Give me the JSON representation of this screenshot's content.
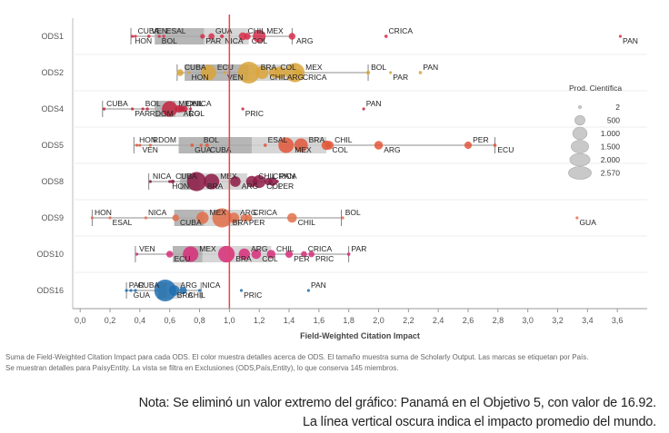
{
  "chart_data": {
    "type": "scatter",
    "subtype": "box-and-whisker with bubble marks",
    "xlabel": "Field-Weighted Citation Impact",
    "ylabel": "",
    "xlim": [
      -0.05,
      3.8
    ],
    "x_ticks": [
      "0,0",
      "0,2",
      "0,4",
      "0,6",
      "0,8",
      "1,0",
      "1,2",
      "1,4",
      "1,6",
      "1,8",
      "2,0",
      "2,2",
      "2,4",
      "2,6",
      "2,8",
      "3,0",
      "3,2",
      "3,4",
      "3,6"
    ],
    "x_tick_values": [
      0,
      0.2,
      0.4,
      0.6,
      0.8,
      1.0,
      1.2,
      1.4,
      1.6,
      1.8,
      2.0,
      2.2,
      2.4,
      2.6,
      2.8,
      3.0,
      3.2,
      3.4,
      3.6
    ],
    "reference_line": {
      "x": 1.0,
      "color": "#e8464a"
    },
    "categories": [
      "ODS1",
      "ODS2",
      "ODS4",
      "ODS5",
      "ODS8",
      "ODS9",
      "ODS10",
      "ODS16"
    ],
    "series": [
      {
        "name": "ODS1",
        "color": "#d62f4b",
        "box": [
          0.5,
          0.83,
          1.13
        ],
        "whiskers": [
          0.34,
          1.42
        ],
        "points": [
          {
            "label": "CUBA",
            "x": 0.37,
            "size": 50
          },
          {
            "label": "HON",
            "x": 0.35,
            "size": 40
          },
          {
            "label": "VEN",
            "x": 0.46,
            "size": 60
          },
          {
            "label": "BOL",
            "x": 0.53,
            "size": 40
          },
          {
            "label": "ESAL",
            "x": 0.56,
            "size": 50
          },
          {
            "label": "PAR",
            "x": 0.82,
            "size": 120
          },
          {
            "label": "GUA",
            "x": 0.88,
            "size": 200
          },
          {
            "label": "NICA",
            "x": 0.95,
            "size": 80
          },
          {
            "label": "CHIL",
            "x": 1.09,
            "size": 350
          },
          {
            "label": "COL",
            "x": 1.12,
            "size": 250
          },
          {
            "label": "MEX",
            "x": 1.2,
            "size": 900
          },
          {
            "label": "ARG",
            "x": 1.42,
            "size": 250
          },
          {
            "label": "CRICA",
            "x": 2.05,
            "size": 60
          },
          {
            "label": "PAN",
            "x": 3.62,
            "size": 30
          }
        ]
      },
      {
        "name": "ODS2",
        "color": "#d9a53a",
        "box": [
          0.7,
          1.13,
          1.45
        ],
        "whiskers": [
          0.65,
          1.93
        ],
        "points": [
          {
            "label": "CUBA",
            "x": 0.67,
            "size": 250
          },
          {
            "label": "HON",
            "x": 0.73,
            "size": 40
          },
          {
            "label": "ECU",
            "x": 0.86,
            "size": 1300
          },
          {
            "label": "VEN",
            "x": 0.97,
            "size": 40
          },
          {
            "label": "BRA",
            "x": 1.13,
            "size": 2570
          },
          {
            "label": "CHIL",
            "x": 1.22,
            "size": 900
          },
          {
            "label": "COL",
            "x": 1.3,
            "size": 600
          },
          {
            "label": "ARG",
            "x": 1.34,
            "size": 800
          },
          {
            "label": "MEX",
            "x": 1.44,
            "size": 2000
          },
          {
            "label": "CRICA",
            "x": 1.46,
            "size": 300
          },
          {
            "label": "BOL",
            "x": 1.93,
            "size": 80
          },
          {
            "label": "PAR",
            "x": 2.08,
            "size": 40
          },
          {
            "label": "PAN",
            "x": 2.28,
            "size": 60
          }
        ]
      },
      {
        "name": "ODS4",
        "color": "#c2253e",
        "box": [
          0.5,
          0.64,
          0.73
        ],
        "whiskers": [
          0.15,
          0.74
        ],
        "points": [
          {
            "label": "CUBA",
            "x": 0.16,
            "size": 50
          },
          {
            "label": "PAR",
            "x": 0.35,
            "size": 30
          },
          {
            "label": "BOL",
            "x": 0.42,
            "size": 40
          },
          {
            "label": "RDOM",
            "x": 0.45,
            "size": 50
          },
          {
            "label": "MEX",
            "x": 0.6,
            "size": 1300
          },
          {
            "label": "ARG",
            "x": 0.66,
            "size": 300
          },
          {
            "label": "CHIL",
            "x": 0.68,
            "size": 250
          },
          {
            "label": "COL",
            "x": 0.7,
            "size": 200
          },
          {
            "label": "NICA",
            "x": 0.74,
            "size": 40
          },
          {
            "label": "PRIC",
            "x": 1.09,
            "size": 30
          },
          {
            "label": "PAN",
            "x": 1.9,
            "size": 30
          }
        ]
      },
      {
        "name": "ODS5",
        "color": "#e2573a",
        "box": [
          0.66,
          1.15,
          1.65
        ],
        "whiskers": [
          0.36,
          2.78
        ],
        "points": [
          {
            "label": "HON",
            "x": 0.38,
            "size": 30
          },
          {
            "label": "VEN",
            "x": 0.4,
            "size": 40
          },
          {
            "label": "RDOM",
            "x": 0.47,
            "size": 40
          },
          {
            "label": "GUA",
            "x": 0.75,
            "size": 60
          },
          {
            "label": "BOL",
            "x": 0.81,
            "size": 50
          },
          {
            "label": "CUBA",
            "x": 0.85,
            "size": 80
          },
          {
            "label": "ESAL",
            "x": 1.24,
            "size": 60
          },
          {
            "label": "MEX",
            "x": 1.38,
            "size": 1300
          },
          {
            "label": "BRA",
            "x": 1.48,
            "size": 1000
          },
          {
            "label": "COL",
            "x": 1.65,
            "size": 500
          },
          {
            "label": "CHIL",
            "x": 1.67,
            "size": 400
          },
          {
            "label": "ARG",
            "x": 2.0,
            "size": 400
          },
          {
            "label": "PER",
            "x": 2.6,
            "size": 300
          },
          {
            "label": "ECU",
            "x": 2.78,
            "size": 60
          }
        ]
      },
      {
        "name": "ODS8",
        "color": "#8c1a44",
        "box": [
          0.67,
          0.8,
          1.12
        ],
        "whiskers": [
          0.46,
          1.29
        ],
        "points": [
          {
            "label": "NICA",
            "x": 0.47,
            "size": 40
          },
          {
            "label": "HON",
            "x": 0.6,
            "size": 40
          },
          {
            "label": "CUBA",
            "x": 0.62,
            "size": 80
          },
          {
            "label": "BRA",
            "x": 0.78,
            "size": 2000
          },
          {
            "label": "MEX",
            "x": 0.88,
            "size": 1300
          },
          {
            "label": "ARG",
            "x": 1.04,
            "size": 600
          },
          {
            "label": "CHIL",
            "x": 1.15,
            "size": 700
          },
          {
            "label": "COL",
            "x": 1.2,
            "size": 900
          },
          {
            "label": "CRICA",
            "x": 1.26,
            "size": 300
          },
          {
            "label": "PER",
            "x": 1.29,
            "size": 400
          },
          {
            "label": "PAN",
            "x": 1.32,
            "size": 60
          }
        ]
      },
      {
        "name": "ODS9",
        "color": "#e2704a",
        "box": [
          0.63,
          0.83,
          1.08
        ],
        "whiskers": [
          0.08,
          1.75
        ],
        "points": [
          {
            "label": "HON",
            "x": 0.08,
            "size": 30
          },
          {
            "label": "ESAL",
            "x": 0.2,
            "size": 30
          },
          {
            "label": "NICA",
            "x": 0.44,
            "size": 40
          },
          {
            "label": "CUBA",
            "x": 0.64,
            "size": 250
          },
          {
            "label": "MEX",
            "x": 0.82,
            "size": 800
          },
          {
            "label": "BRA",
            "x": 0.95,
            "size": 2000
          },
          {
            "label": "ARG",
            "x": 1.03,
            "size": 600
          },
          {
            "label": "PER",
            "x": 1.1,
            "size": 300
          },
          {
            "label": "CRICA",
            "x": 1.13,
            "size": 250
          },
          {
            "label": "CHIL",
            "x": 1.42,
            "size": 500
          },
          {
            "label": "BOL",
            "x": 1.76,
            "size": 40
          },
          {
            "label": "GUA",
            "x": 3.33,
            "size": 30
          }
        ]
      },
      {
        "name": "ODS10",
        "color": "#d72e7a",
        "box": [
          0.62,
          0.82,
          1.28
        ],
        "whiskers": [
          0.37,
          1.8
        ],
        "points": [
          {
            "label": "VEN",
            "x": 0.38,
            "size": 40
          },
          {
            "label": "ECU",
            "x": 0.6,
            "size": 250
          },
          {
            "label": "MEX",
            "x": 0.74,
            "size": 1300
          },
          {
            "label": "BRA",
            "x": 0.98,
            "size": 1500
          },
          {
            "label": "ARG",
            "x": 1.1,
            "size": 700
          },
          {
            "label": "COL",
            "x": 1.18,
            "size": 500
          },
          {
            "label": "CHIL",
            "x": 1.28,
            "size": 400
          },
          {
            "label": "PER",
            "x": 1.4,
            "size": 300
          },
          {
            "label": "CRICA",
            "x": 1.5,
            "size": 200
          },
          {
            "label": "PRIC",
            "x": 1.55,
            "size": 200
          },
          {
            "label": "PAR",
            "x": 1.8,
            "size": 60
          }
        ]
      },
      {
        "name": "ODS16",
        "color": "#1f6fb0",
        "box": [
          0.52,
          0.58,
          0.68
        ],
        "whiskers": [
          0.31,
          0.81
        ],
        "points": [
          {
            "label": "PAR",
            "x": 0.31,
            "size": 40
          },
          {
            "label": "GUA",
            "x": 0.34,
            "size": 40
          },
          {
            "label": "CUBA",
            "x": 0.37,
            "size": 50
          },
          {
            "label": "BRA",
            "x": 0.57,
            "size": 2570
          },
          {
            "label": "ARG",
            "x": 0.63,
            "size": 600
          },
          {
            "label": "CHIL",
            "x": 0.69,
            "size": 300
          },
          {
            "label": "NICA",
            "x": 0.8,
            "size": 40
          },
          {
            "label": "PRIC",
            "x": 1.08,
            "size": 40
          },
          {
            "label": "PAN",
            "x": 1.53,
            "size": 30
          }
        ]
      }
    ],
    "legend": {
      "title": "Prod. Científica",
      "placement": "right",
      "entries": [
        "2",
        "500",
        "1.000",
        "1.500",
        "2.000",
        "2.570"
      ],
      "entry_values": [
        2,
        500,
        1000,
        1500,
        2000,
        2570
      ]
    }
  },
  "caption": {
    "line1": "Suma de Field-Weighted Citation Impact para cada ODS. El color muestra detalles acerca de ODS. El tamaño muestra suma de Scholarly Output. Las marcas se etiquetan por País.",
    "line2": "Se muestran detalles para PaísyEntity. La vista se filtra en Exclusiones (ODS,País,Entity), lo que conserva 145 miembros."
  },
  "note": {
    "line1": "Nota: Se eliminó un valor extremo del gráfico: Panamá en el Objetivo 5, con valor de 16.92.",
    "line2": "La línea vertical oscura indica el impacto promedio del mundo."
  }
}
